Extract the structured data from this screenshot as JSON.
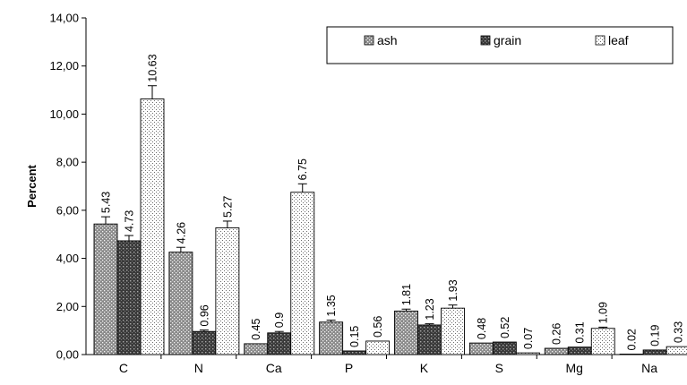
{
  "chart_data": {
    "type": "bar",
    "ylabel": "Percent",
    "ylim": [
      0,
      14
    ],
    "yticks": [
      "0,00",
      "2,00",
      "4,00",
      "6,00",
      "8,00",
      "10,00",
      "12,00",
      "14,00"
    ],
    "categories": [
      "C",
      "N",
      "Ca",
      "P",
      "K",
      "S",
      "Mg",
      "Na"
    ],
    "legend_position": "top-right",
    "series": [
      {
        "name": "ash",
        "values": [
          5.43,
          4.26,
          0.45,
          1.35,
          1.81,
          0.48,
          0.26,
          0.02
        ],
        "value_labels": [
          "5.43",
          "4.26",
          "0.45",
          "1.35",
          "1.81",
          "0.48",
          "0.26",
          "0.02"
        ],
        "errors": [
          0.3,
          0.2,
          0,
          0.08,
          0.08,
          0,
          0,
          0
        ],
        "pattern": "dots-on-gray"
      },
      {
        "name": "grain",
        "values": [
          4.73,
          0.96,
          0.9,
          0.15,
          1.23,
          0.52,
          0.31,
          0.19
        ],
        "value_labels": [
          "4.73",
          "0.96",
          "0.9",
          "0.15",
          "1.23",
          "0.52",
          "0.31",
          "0.19"
        ],
        "errors": [
          0.22,
          0.06,
          0.06,
          0,
          0.05,
          0,
          0,
          0
        ],
        "pattern": "crosshatch-dark"
      },
      {
        "name": "leaf",
        "values": [
          10.63,
          5.27,
          6.75,
          0.56,
          1.93,
          0.07,
          1.09,
          0.33
        ],
        "value_labels": [
          "10.63",
          "5.27",
          "6.75",
          "0.56",
          "1.93",
          "0.07",
          "1.09",
          "0.33"
        ],
        "errors": [
          0.55,
          0.28,
          0.35,
          0,
          0.13,
          0,
          0.05,
          0
        ],
        "pattern": "dots-on-white"
      }
    ]
  }
}
